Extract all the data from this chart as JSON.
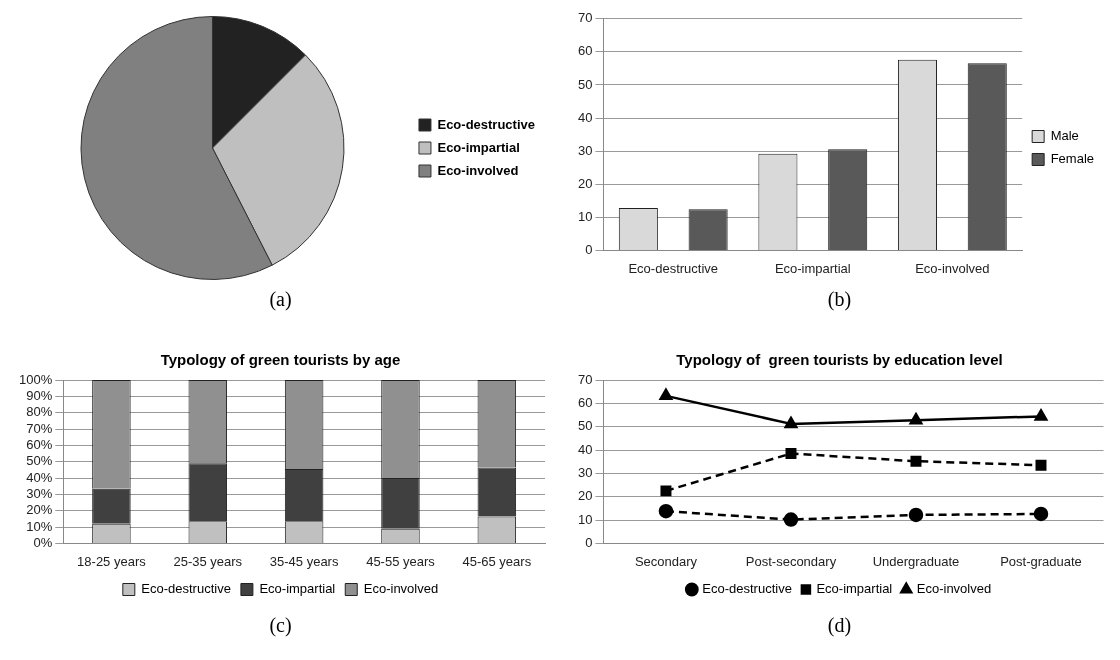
{
  "chart_data": [
    {
      "type": "pie",
      "categories": [
        "Eco-destructive",
        "Eco-impartial",
        "Eco-involved"
      ],
      "values": [
        12.5,
        30,
        57.5
      ],
      "colors": [
        "#222222",
        "#bfbfbf",
        "#808080"
      ],
      "legend": "right",
      "annotations": [
        "(a)"
      ]
    },
    {
      "type": "bar",
      "categories": [
        "Eco-destructive",
        "Eco-impartial",
        "Eco-involved"
      ],
      "series": [
        {
          "name": "Male",
          "color": "#d9d9d9",
          "values": [
            12.8,
            29.2,
            57.6
          ]
        },
        {
          "name": "Female",
          "color": "#595959",
          "values": [
            12.4,
            30.6,
            56.6
          ]
        }
      ],
      "ylim": [
        0,
        70
      ],
      "yticks": [
        0,
        10,
        20,
        30,
        40,
        50,
        60,
        70
      ],
      "grid": "y",
      "legend": "right",
      "annotations": [
        "(b)"
      ]
    },
    {
      "type": "bar",
      "title": "Typology of green tourists by age",
      "categories": [
        "18-25 years",
        "25-35 years",
        "35-45 years",
        "45-55 years",
        "45-65 years"
      ],
      "stacked": true,
      "series": [
        {
          "name": "Eco-destructive",
          "color": "#c0c0c0",
          "values": [
            12,
            13.5,
            13.5,
            9,
            16.5
          ]
        },
        {
          "name": "Eco-impartial",
          "color": "#404040",
          "values": [
            21.5,
            35.5,
            32,
            31,
            30
          ]
        },
        {
          "name": "Eco-involved",
          "color": "#909090",
          "values": [
            66.5,
            51,
            54.5,
            60,
            53.5
          ]
        }
      ],
      "ylim": [
        0,
        100
      ],
      "yticks": [
        {
          "value": 0,
          "label": "0%"
        },
        {
          "value": 10,
          "label": "10%"
        },
        {
          "value": 20,
          "label": "20%"
        },
        {
          "value": 30,
          "label": "30%"
        },
        {
          "value": 40,
          "label": "40%"
        },
        {
          "value": 50,
          "label": "50%"
        },
        {
          "value": 60,
          "label": "60%"
        },
        {
          "value": 70,
          "label": "70%"
        },
        {
          "value": 80,
          "label": "80%"
        },
        {
          "value": 90,
          "label": "90%"
        },
        {
          "value": 100,
          "label": "100%"
        }
      ],
      "grid": "y",
      "legend": "bottom",
      "annotations": [
        "(c)"
      ]
    },
    {
      "type": "line",
      "title": "Typology of  green tourists by education level",
      "categories": [
        "Secondary",
        "Post-secondary",
        "Undergraduate",
        "Post-graduate"
      ],
      "series": [
        {
          "name": "Eco-destructive",
          "color": "#000000",
          "values": [
            13.8,
            10.2,
            12.2,
            12.6
          ],
          "marker": "circle",
          "line_style": "dashed"
        },
        {
          "name": "Eco-impartial",
          "color": "#000000",
          "values": [
            22.5,
            38.5,
            35.2,
            33.5
          ],
          "marker": "square",
          "line_style": "dashed"
        },
        {
          "name": "Eco-involved",
          "color": "#000000",
          "values": [
            63.2,
            51.2,
            52.8,
            54.4
          ],
          "marker": "triangle",
          "line_style": "solid"
        }
      ],
      "ylim": [
        0,
        70
      ],
      "yticks": [
        0,
        10,
        20,
        30,
        40,
        50,
        60,
        70
      ],
      "grid": "y",
      "legend": "bottom",
      "annotations": [
        "(d)"
      ]
    }
  ]
}
